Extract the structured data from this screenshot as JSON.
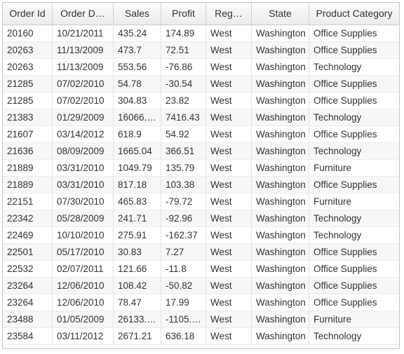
{
  "columns": [
    "Order Id",
    "Order D…",
    "Sales",
    "Profit",
    "Reg…",
    "State",
    "Product Category"
  ],
  "rows": [
    [
      "20160",
      "10/21/2011",
      "435.24",
      "174.89",
      "West",
      "Washington",
      "Office Supplies"
    ],
    [
      "20263",
      "11/13/2009",
      "473.7",
      "72.51",
      "West",
      "Washington",
      "Office Supplies"
    ],
    [
      "20263",
      "11/13/2009",
      "553.56",
      "-76.86",
      "West",
      "Washington",
      "Technology"
    ],
    [
      "21285",
      "07/02/2010",
      "54.78",
      "-30.54",
      "West",
      "Washington",
      "Office Supplies"
    ],
    [
      "21285",
      "07/02/2010",
      "304.83",
      "23.82",
      "West",
      "Washington",
      "Office Supplies"
    ],
    [
      "21383",
      "01/29/2009",
      "16066.…",
      "7416.43",
      "West",
      "Washington",
      "Technology"
    ],
    [
      "21607",
      "03/14/2012",
      "618.9",
      "54.92",
      "West",
      "Washington",
      "Office Supplies"
    ],
    [
      "21636",
      "08/09/2009",
      "1665.04",
      "366.51",
      "West",
      "Washington",
      "Technology"
    ],
    [
      "21889",
      "03/31/2010",
      "1049.79",
      "135.79",
      "West",
      "Washington",
      "Furniture"
    ],
    [
      "21889",
      "03/31/2010",
      "817.18",
      "103.38",
      "West",
      "Washington",
      "Office Supplies"
    ],
    [
      "22151",
      "07/30/2010",
      "465.83",
      "-79.72",
      "West",
      "Washington",
      "Furniture"
    ],
    [
      "22342",
      "05/28/2009",
      "241.71",
      "-92.96",
      "West",
      "Washington",
      "Technology"
    ],
    [
      "22469",
      "10/10/2010",
      "275.91",
      "-162.37",
      "West",
      "Washington",
      "Technology"
    ],
    [
      "22501",
      "05/17/2010",
      "30.83",
      "7.27",
      "West",
      "Washington",
      "Office Supplies"
    ],
    [
      "22532",
      "02/07/2011",
      "121.66",
      "-11.8",
      "West",
      "Washington",
      "Office Supplies"
    ],
    [
      "23264",
      "12/06/2010",
      "108.42",
      "-50.82",
      "West",
      "Washington",
      "Office Supplies"
    ],
    [
      "23264",
      "12/06/2010",
      "78.47",
      "17.99",
      "West",
      "Washington",
      "Office Supplies"
    ],
    [
      "23488",
      "01/05/2009",
      "26133.…",
      "-1105.…",
      "West",
      "Washington",
      "Furniture"
    ],
    [
      "23584",
      "03/11/2012",
      "2671.21",
      "636.18",
      "West",
      "Washington",
      "Technology"
    ]
  ]
}
